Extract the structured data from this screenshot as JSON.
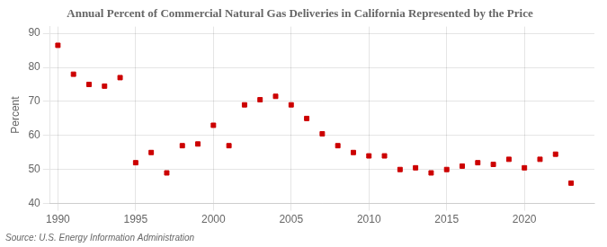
{
  "chart_data": {
    "type": "scatter",
    "title": "Annual Percent of Commercial Natural Gas Deliveries in California Represented by the Price",
    "ylabel": "Percent",
    "source": "Source: U.S. Energy Information Administration",
    "x": [
      1990,
      1991,
      1992,
      1993,
      1994,
      1995,
      1996,
      1997,
      1998,
      1999,
      2000,
      2001,
      2002,
      2003,
      2004,
      2005,
      2006,
      2007,
      2008,
      2009,
      2010,
      2011,
      2012,
      2013,
      2014,
      2015,
      2016,
      2017,
      2018,
      2019,
      2020,
      2021,
      2022,
      2023
    ],
    "values": [
      86.5,
      78.0,
      75.0,
      74.5,
      77.0,
      52.0,
      55.0,
      49.0,
      57.0,
      57.5,
      63.0,
      57.0,
      69.0,
      70.5,
      71.5,
      69.0,
      65.0,
      60.5,
      57.0,
      55.0,
      54.0,
      54.0,
      50.0,
      50.5,
      49.0,
      50.0,
      51.0,
      52.0,
      51.5,
      53.0,
      50.5,
      53.0,
      54.5,
      46.0
    ],
    "color": "#cc0000",
    "marker": "square",
    "xlim": [
      1989.5,
      2024.5
    ],
    "xticks": [
      1990,
      1995,
      2000,
      2005,
      2010,
      2015,
      2020
    ],
    "ylim": [
      40,
      92
    ],
    "yticks": [
      40,
      50,
      60,
      70,
      80,
      90
    ],
    "grid": true
  }
}
